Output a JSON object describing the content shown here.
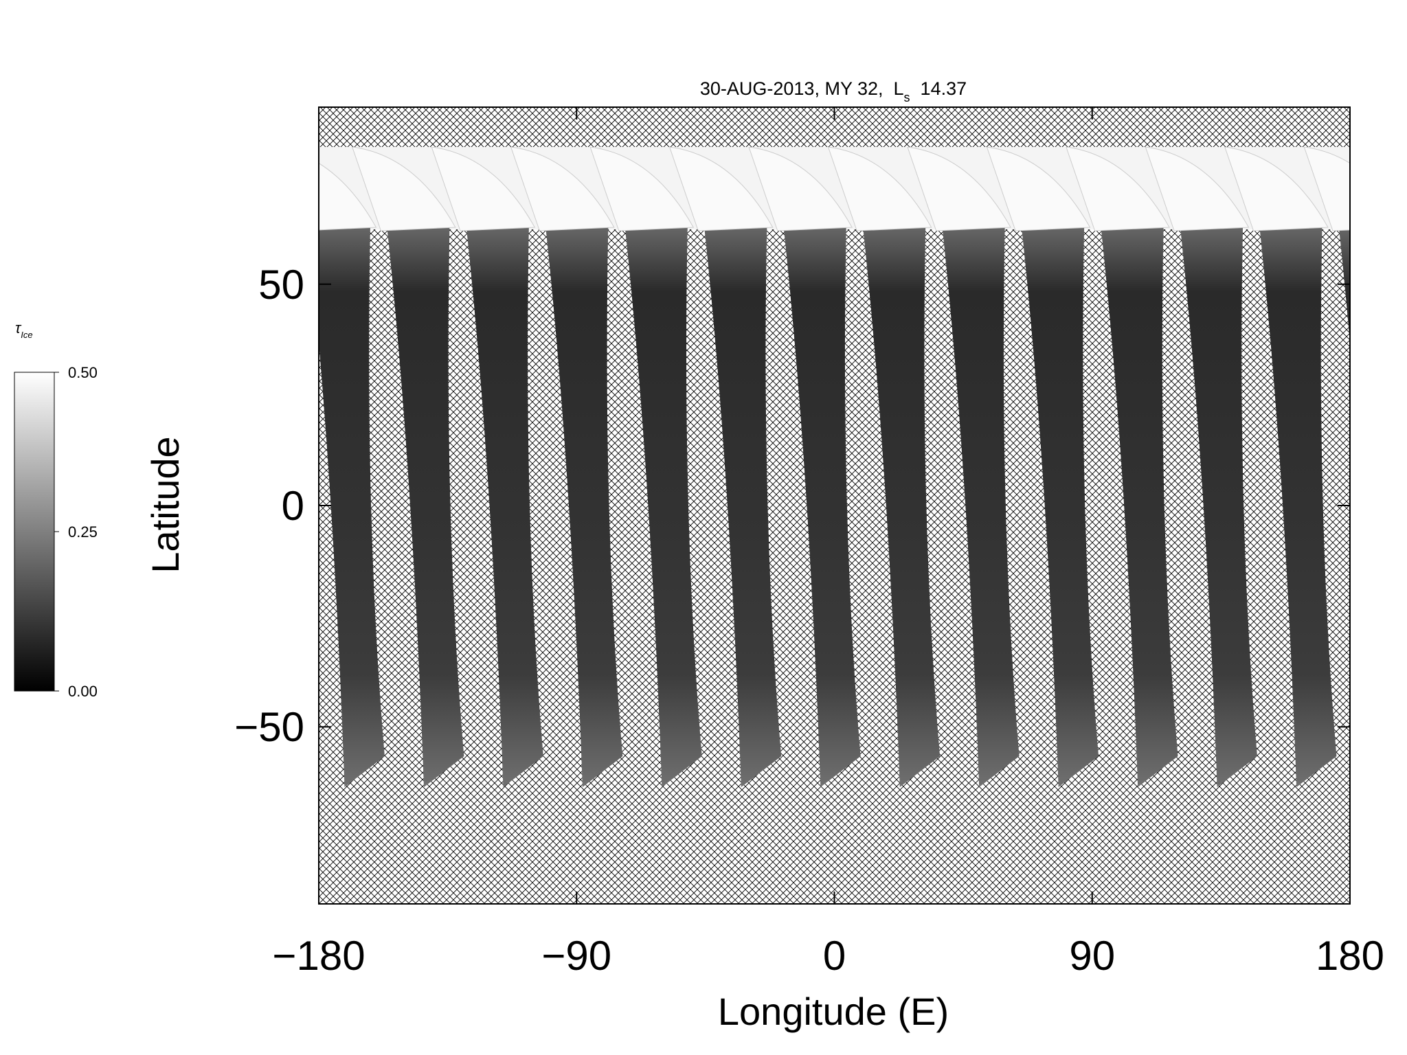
{
  "chart_data": {
    "type": "map",
    "title": {
      "text": "30-AUG-2013, MY 32,  L",
      "subscript": "s",
      "suffix": "14.37"
    },
    "x_label": "Longitude (E)",
    "y_label": "Latitude",
    "xlim": [
      -180,
      180
    ],
    "xticks": [
      {
        "value": -180,
        "label": "−180"
      },
      {
        "value": -90,
        "label": "−90"
      },
      0,
      90,
      180
    ],
    "ylim": [
      -90,
      90
    ],
    "yticks": [
      {
        "value": -50,
        "label": "−50"
      },
      0,
      50
    ],
    "colorbar": {
      "label": "τ",
      "label_subscript": "Ice",
      "clim": [
        0,
        0.5
      ],
      "ticks": [
        {
          "value": 0,
          "label": "0.00"
        },
        {
          "value": 0.25,
          "label": "0.25"
        },
        {
          "value": 0.5,
          "label": "0.50"
        }
      ]
    }
  }
}
